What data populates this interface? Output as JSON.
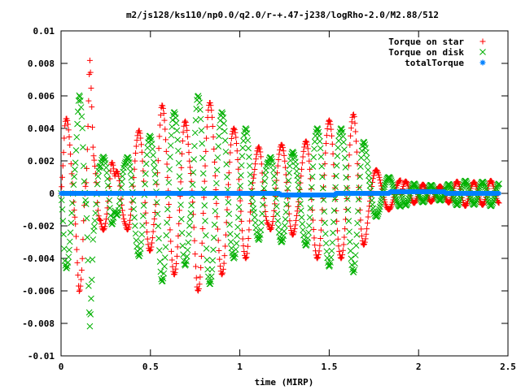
{
  "chart_data": {
    "type": "scatter",
    "title": "m2/js128/ks110/np0.0/q2.0/r-+.47-j238/logRho-2.0/M2.88/512",
    "xlabel": "time (MIRP)",
    "ylabel": "",
    "xlim": [
      0,
      2.5
    ],
    "ylim": [
      -0.01,
      0.01
    ],
    "x_ticks": [
      0,
      0.5,
      1,
      1.5,
      2,
      2.5
    ],
    "x_tick_labels": [
      "0",
      "0.5",
      "1",
      "1.5",
      "2",
      "2.5"
    ],
    "y_ticks": [
      -0.01,
      -0.008,
      -0.006,
      -0.004,
      -0.002,
      0,
      0.002,
      0.004,
      0.006,
      0.008,
      0.01
    ],
    "y_tick_labels": [
      "-0.01",
      "-0.008",
      "-0.006",
      "-0.004",
      "-0.002",
      "0",
      "0.002",
      "0.004",
      "0.006",
      "0.008",
      "0.01"
    ],
    "grid": false,
    "legend_position": "top-right",
    "series": [
      {
        "name": "Torque on star",
        "marker": "plus",
        "color": "#ff0000",
        "x": [
          0.0,
          0.02,
          0.05,
          0.08,
          0.1,
          0.12,
          0.14,
          0.16,
          0.17,
          0.18,
          0.2,
          0.22,
          0.25,
          0.28,
          0.3,
          0.33,
          0.36,
          0.4,
          0.44,
          0.48,
          0.52,
          0.56,
          0.6,
          0.64,
          0.68,
          0.72,
          0.76,
          0.8,
          0.84,
          0.88,
          0.92,
          0.96,
          1.0,
          1.04,
          1.08,
          1.12,
          1.16,
          1.2,
          1.24,
          1.28,
          1.32,
          1.36,
          1.4,
          1.44,
          1.48,
          1.52,
          1.56,
          1.6,
          1.64,
          1.68,
          1.72,
          1.76,
          1.8,
          1.85,
          1.9,
          1.95,
          2.0,
          2.05,
          2.1,
          2.15,
          2.2,
          2.25,
          2.3,
          2.35,
          2.4,
          2.45
        ],
        "y": [
          0.002,
          -0.005,
          0.004,
          -0.003,
          0.006,
          0.0065,
          -0.002,
          -0.0088,
          0.006,
          0.003,
          -0.004,
          0.002,
          0.0025,
          -0.003,
          0.001,
          0.0025,
          -0.002,
          0.003,
          -0.004,
          0.004,
          -0.003,
          0.0055,
          -0.005,
          0.005,
          0.0055,
          -0.003,
          0.006,
          0.006,
          -0.0055,
          0.005,
          -0.005,
          0.004,
          -0.004,
          0.004,
          -0.002,
          0.0035,
          0.002,
          0.003,
          -0.003,
          0.003,
          -0.002,
          0.003,
          -0.004,
          0.004,
          -0.0045,
          0.0045,
          -0.004,
          0.004,
          -0.005,
          0.004,
          -0.002,
          0.0015,
          -0.001,
          0.001,
          -0.0008,
          0.0007,
          -0.0005,
          0.0006,
          -0.0004,
          0.0005,
          -0.0007,
          0.0008,
          -0.0007,
          0.0007,
          -0.0008,
          0.0006
        ]
      },
      {
        "name": "Torque on disk",
        "marker": "cross",
        "color": "#00b000",
        "x": [
          0.0,
          0.02,
          0.05,
          0.08,
          0.1,
          0.12,
          0.14,
          0.16,
          0.17,
          0.18,
          0.2,
          0.22,
          0.25,
          0.28,
          0.3,
          0.33,
          0.36,
          0.4,
          0.44,
          0.48,
          0.52,
          0.56,
          0.6,
          0.64,
          0.68,
          0.72,
          0.76,
          0.8,
          0.84,
          0.88,
          0.92,
          0.96,
          1.0,
          1.04,
          1.08,
          1.12,
          1.16,
          1.2,
          1.24,
          1.28,
          1.32,
          1.36,
          1.4,
          1.44,
          1.48,
          1.52,
          1.56,
          1.6,
          1.64,
          1.68,
          1.72,
          1.76,
          1.8,
          1.85,
          1.9,
          1.95,
          2.0,
          2.05,
          2.1,
          2.15,
          2.2,
          2.25,
          2.3,
          2.35,
          2.4,
          2.45
        ],
        "y": [
          -0.002,
          0.005,
          -0.004,
          0.003,
          -0.006,
          -0.0065,
          0.002,
          0.0088,
          -0.006,
          -0.003,
          0.004,
          -0.002,
          -0.0025,
          0.003,
          -0.001,
          -0.0025,
          0.002,
          -0.003,
          0.004,
          -0.004,
          0.003,
          -0.0055,
          0.005,
          -0.005,
          -0.0055,
          0.003,
          -0.006,
          -0.006,
          0.0055,
          -0.005,
          0.005,
          -0.004,
          0.004,
          -0.004,
          0.002,
          -0.0035,
          -0.002,
          -0.003,
          0.003,
          -0.003,
          0.002,
          -0.003,
          0.004,
          -0.004,
          0.0045,
          -0.0045,
          0.004,
          -0.004,
          0.005,
          -0.004,
          0.002,
          -0.0015,
          0.001,
          -0.001,
          0.0008,
          -0.0007,
          0.0005,
          -0.0006,
          0.0004,
          -0.0005,
          0.0007,
          -0.0008,
          0.0007,
          -0.0007,
          0.0008,
          -0.0006
        ]
      },
      {
        "name": "totalTorque",
        "marker": "star",
        "color": "#0080ff",
        "x_range": [
          0.0,
          2.45
        ],
        "y_values": [
          0.0,
          0.0,
          0.0,
          0.0,
          -0.0001,
          0.0,
          0.0001,
          0.0
        ]
      }
    ]
  }
}
